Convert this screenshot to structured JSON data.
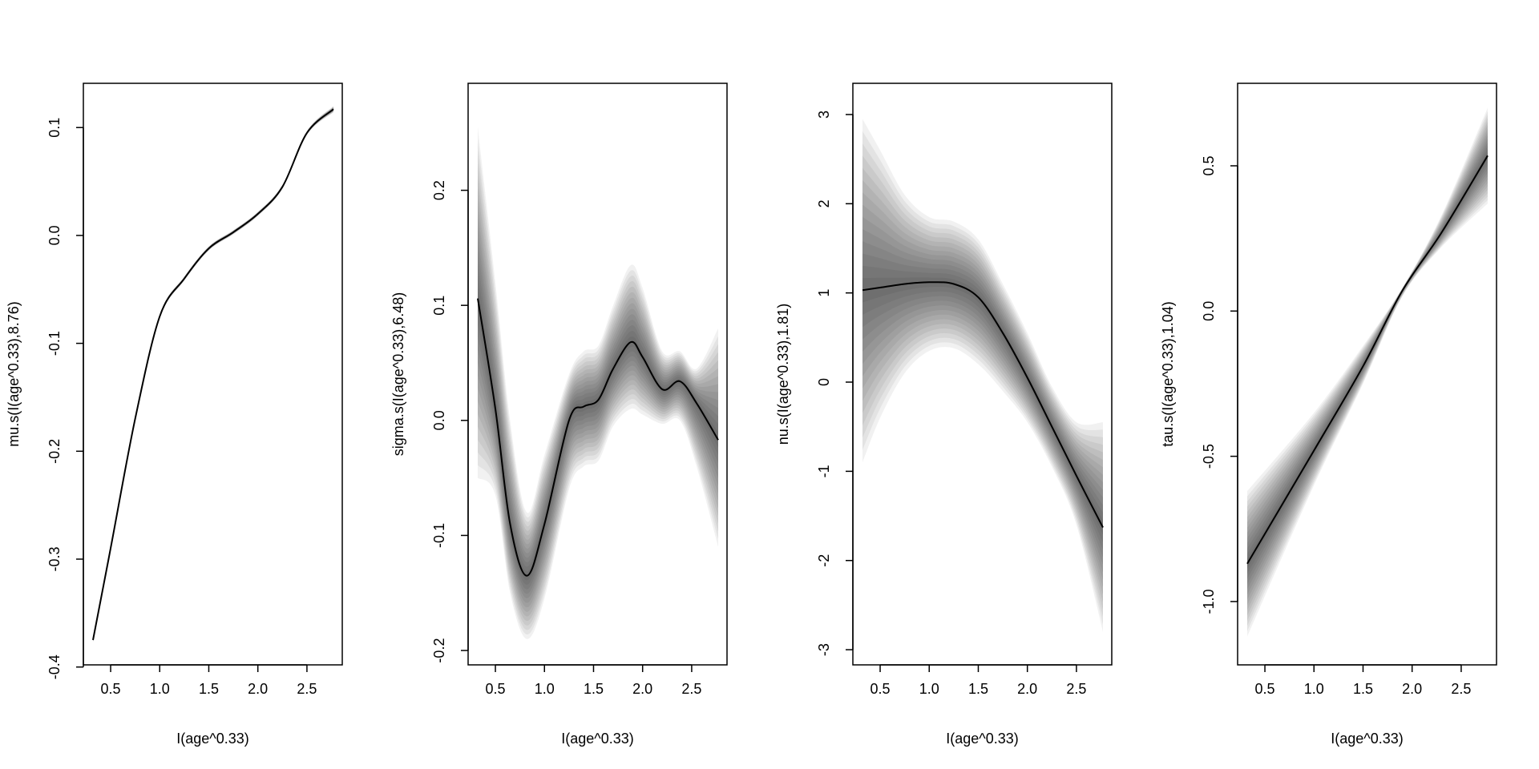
{
  "chart_data": [
    {
      "type": "line",
      "xlabel": "I(age^0.33)",
      "ylabel": "mu.s(I(age^0.33),8.76)",
      "xlim": [
        0.222,
        2.86
      ],
      "ylim": [
        -0.398,
        0.141
      ],
      "xticks": [
        "0.5",
        "1.0",
        "1.5",
        "2.0",
        "2.5"
      ],
      "yticks": [
        "-0.4",
        "-0.3",
        "-0.2",
        "-0.1",
        "0.0",
        "0.1"
      ],
      "x": [
        0.32,
        0.5,
        0.75,
        1.0,
        1.25,
        1.5,
        1.75,
        2.0,
        2.25,
        2.5,
        2.77
      ],
      "mean": [
        -0.375,
        -0.29,
        -0.17,
        -0.075,
        -0.04,
        -0.012,
        0.003,
        0.02,
        0.045,
        0.095,
        0.117
      ],
      "upper": [
        -0.373,
        -0.288,
        -0.168,
        -0.073,
        -0.038,
        -0.01,
        0.005,
        0.022,
        0.047,
        0.097,
        0.12
      ],
      "lower": [
        -0.377,
        -0.292,
        -0.172,
        -0.077,
        -0.042,
        -0.014,
        0.001,
        0.018,
        0.043,
        0.093,
        0.114
      ]
    },
    {
      "type": "line",
      "xlabel": "I(age^0.33)",
      "ylabel": "sigma.s(I(age^0.33),6.48)",
      "xlim": [
        0.222,
        2.86
      ],
      "ylim": [
        -0.2125,
        0.293
      ],
      "xticks": [
        "0.5",
        "1.0",
        "1.5",
        "2.0",
        "2.5"
      ],
      "yticks": [
        "-0.2",
        "-0.1",
        "0.0",
        "0.1",
        "0.2"
      ],
      "x": [
        0.32,
        0.5,
        0.65,
        0.82,
        1.0,
        1.25,
        1.4,
        1.55,
        1.7,
        1.88,
        2.0,
        2.2,
        2.38,
        2.55,
        2.77
      ],
      "mean": [
        0.106,
        0.01,
        -0.09,
        -0.135,
        -0.09,
        0.0,
        0.012,
        0.018,
        0.045,
        0.068,
        0.055,
        0.027,
        0.034,
        0.015,
        -0.017
      ],
      "upper": [
        0.255,
        0.12,
        0.0,
        -0.08,
        -0.03,
        0.04,
        0.06,
        0.065,
        0.1,
        0.135,
        0.115,
        0.06,
        0.06,
        0.045,
        0.08
      ],
      "lower": [
        -0.05,
        -0.065,
        -0.15,
        -0.19,
        -0.155,
        -0.06,
        -0.04,
        -0.035,
        -0.005,
        0.01,
        0.005,
        -0.003,
        0.0,
        -0.04,
        -0.11
      ]
    },
    {
      "type": "line",
      "xlabel": "I(age^0.33)",
      "ylabel": "nu.s(I(age^0.33),1.81)",
      "xlim": [
        0.222,
        2.86
      ],
      "ylim": [
        -3.17,
        3.35
      ],
      "xticks": [
        "0.5",
        "1.0",
        "1.5",
        "2.0",
        "2.5"
      ],
      "yticks": [
        "-3",
        "-2",
        "-1",
        "0",
        "1",
        "2",
        "3"
      ],
      "x": [
        0.32,
        0.5,
        0.75,
        1.0,
        1.25,
        1.5,
        1.75,
        2.0,
        2.25,
        2.5,
        2.77
      ],
      "mean": [
        1.03,
        1.06,
        1.1,
        1.12,
        1.1,
        0.95,
        0.55,
        0.05,
        -0.5,
        -1.05,
        -1.63
      ],
      "upper": [
        2.95,
        2.6,
        2.1,
        1.85,
        1.8,
        1.6,
        1.1,
        0.55,
        -0.05,
        -0.45,
        -0.45
      ],
      "lower": [
        -0.9,
        -0.4,
        0.1,
        0.35,
        0.38,
        0.2,
        -0.1,
        -0.45,
        -0.95,
        -1.6,
        -2.8
      ]
    },
    {
      "type": "line",
      "xlabel": "I(age^0.33)",
      "ylabel": "tau.s(I(age^0.33),1.04)",
      "xlim": [
        0.222,
        2.86
      ],
      "ylim": [
        -1.218,
        0.784
      ],
      "xticks": [
        "0.5",
        "1.0",
        "1.5",
        "2.0",
        "2.5"
      ],
      "yticks": [
        "-1.0",
        "-0.5",
        "0.0",
        "0.5"
      ],
      "x": [
        0.32,
        1.0,
        1.5,
        1.9,
        2.3,
        2.77
      ],
      "mean": [
        -0.87,
        -0.48,
        -0.19,
        0.07,
        0.27,
        0.535
      ],
      "upper": [
        -0.62,
        -0.35,
        -0.12,
        0.08,
        0.33,
        0.7
      ],
      "lower": [
        -1.12,
        -0.6,
        -0.25,
        0.05,
        0.22,
        0.37
      ]
    }
  ]
}
